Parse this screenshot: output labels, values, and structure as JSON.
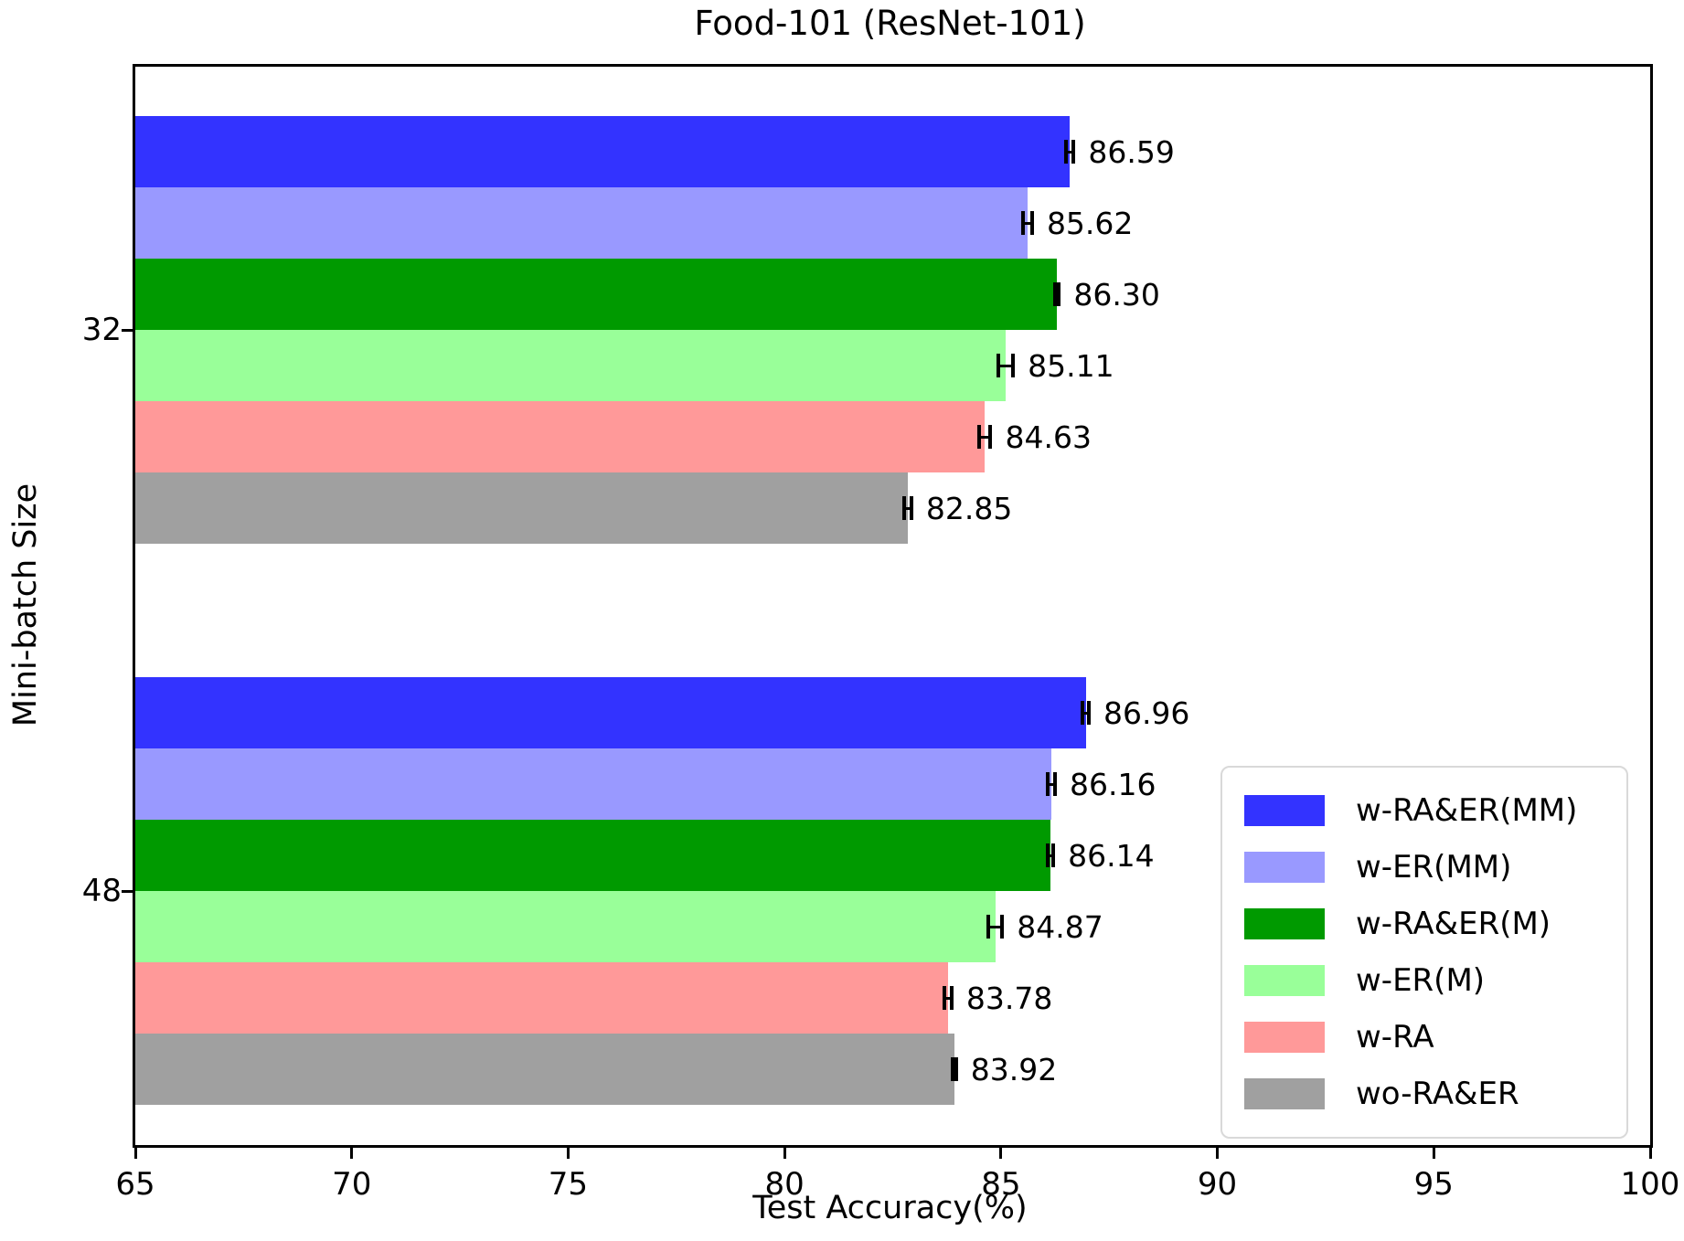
{
  "chart_data": {
    "type": "bar",
    "orientation": "horizontal",
    "title": "Food-101 (ResNet-101)",
    "xlabel": "Test Accuracy(%)",
    "ylabel": "Mini-batch Size",
    "xlim": [
      65,
      100
    ],
    "xticks": [
      65,
      70,
      75,
      80,
      85,
      90,
      95,
      100
    ],
    "grid": false,
    "legend_position": "lower right inside plot",
    "series": [
      {
        "name": "w-RA&ER(MM)",
        "color": "#3333ff"
      },
      {
        "name": "w-ER(MM)",
        "color": "#9999ff"
      },
      {
        "name": "w-RA&ER(M)",
        "color": "#009a00"
      },
      {
        "name": "w-ER(M)",
        "color": "#99ff99"
      },
      {
        "name": "w-RA",
        "color": "#ff9999"
      },
      {
        "name": "wo-RA&ER",
        "color": "#a0a0a0"
      }
    ],
    "categories": [
      "32",
      "48"
    ],
    "groups": [
      {
        "label": "32",
        "bars": [
          {
            "series": "w-RA&ER(MM)",
            "value": 86.59,
            "label": "86.59",
            "error": 0.09
          },
          {
            "series": "w-ER(MM)",
            "value": 85.62,
            "label": "85.62",
            "error": 0.1
          },
          {
            "series": "w-RA&ER(M)",
            "value": 86.3,
            "label": "86.30",
            "error": 0.03
          },
          {
            "series": "w-ER(M)",
            "value": 85.11,
            "label": "85.11",
            "error": 0.17
          },
          {
            "series": "w-RA",
            "value": 84.63,
            "label": "84.63",
            "error": 0.13
          },
          {
            "series": "wo-RA&ER",
            "value": 82.85,
            "label": "82.85",
            "error": 0.08
          }
        ]
      },
      {
        "label": "48",
        "bars": [
          {
            "series": "w-RA&ER(MM)",
            "value": 86.96,
            "label": "86.96",
            "error": 0.07
          },
          {
            "series": "w-ER(MM)",
            "value": 86.16,
            "label": "86.16",
            "error": 0.09
          },
          {
            "series": "w-RA&ER(M)",
            "value": 86.14,
            "label": "86.14",
            "error": 0.07
          },
          {
            "series": "w-ER(M)",
            "value": 84.87,
            "label": "84.87",
            "error": 0.16
          },
          {
            "series": "w-RA",
            "value": 83.78,
            "label": "83.78",
            "error": 0.08
          },
          {
            "series": "wo-RA&ER",
            "value": 83.92,
            "label": "83.92",
            "error": 0.04
          }
        ]
      }
    ],
    "error_bar_color": "#000000",
    "text_color": "#000000"
  }
}
